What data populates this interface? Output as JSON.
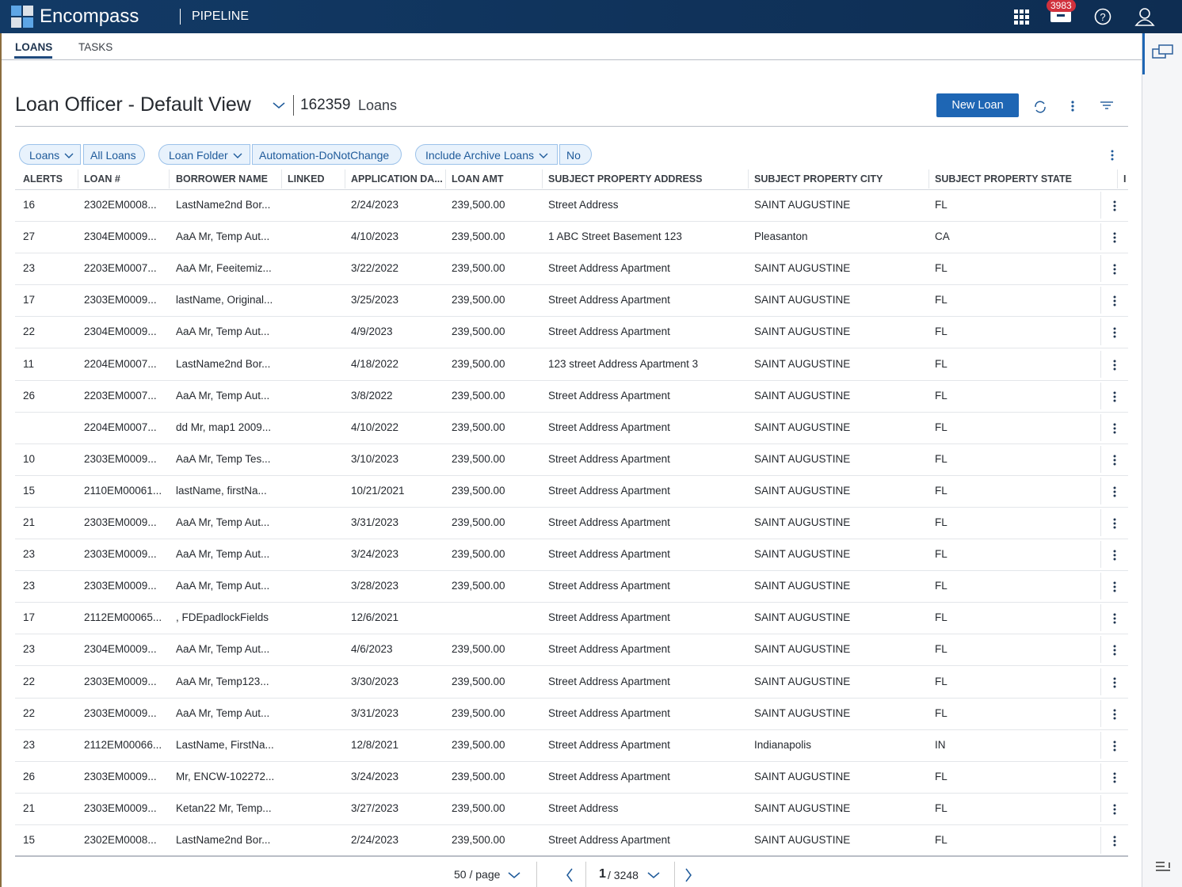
{
  "header": {
    "brand": "Encompass",
    "section": "PIPELINE",
    "badge": "3983"
  },
  "tabs": [
    "LOANS",
    "TASKS"
  ],
  "view": {
    "title": "Loan Officer - Default View",
    "count": "162359",
    "count_label": "Loans",
    "new_loan": "New Loan"
  },
  "filters": [
    {
      "label": "Loans",
      "value": "All Loans"
    },
    {
      "label": "Loan Folder",
      "value": "Automation-DoNotChange"
    },
    {
      "label": "Include Archive Loans",
      "value": "No"
    }
  ],
  "table": {
    "columns": [
      "ALERTS",
      "LOAN #",
      "BORROWER NAME",
      "LINKED",
      "APPLICATION DA...",
      "LOAN AMT",
      "SUBJECT PROPERTY ADDRESS",
      "SUBJECT PROPERTY CITY",
      "SUBJECT PROPERTY STATE",
      "I"
    ],
    "rows": [
      [
        "16",
        "2302EM0008...",
        "LastName2nd Bor...",
        null,
        "2/24/2023",
        "239,500.00",
        "Street Address",
        "SAINT AUGUSTINE",
        "FL"
      ],
      [
        "27",
        "2304EM0009...",
        "AaA Mr, Temp Aut...",
        null,
        "4/10/2023",
        "239,500.00",
        "1 ABC Street Basement 123",
        "Pleasanton",
        "CA"
      ],
      [
        "23",
        "2203EM0007...",
        "AaA Mr, Feeitemiz...",
        null,
        "3/22/2022",
        "239,500.00",
        "Street Address Apartment",
        "SAINT AUGUSTINE",
        "FL"
      ],
      [
        "17",
        "2303EM0009...",
        "lastName, Original...",
        null,
        "3/25/2023",
        "239,500.00",
        "Street Address Apartment",
        "SAINT AUGUSTINE",
        "FL"
      ],
      [
        "22",
        "2304EM0009...",
        "AaA Mr, Temp Aut...",
        null,
        "4/9/2023",
        "239,500.00",
        "Street Address Apartment",
        "SAINT AUGUSTINE",
        "FL"
      ],
      [
        "11",
        "2204EM0007...",
        "LastName2nd Bor...",
        null,
        "4/18/2022",
        "239,500.00",
        "123 street Address Apartment 3",
        "SAINT AUGUSTINE",
        "FL"
      ],
      [
        "26",
        "2203EM0007...",
        "AaA Mr, Temp Aut...",
        null,
        "3/8/2022",
        "239,500.00",
        "Street Address Apartment",
        "SAINT AUGUSTINE",
        "FL"
      ],
      [
        null,
        "2204EM0007...",
        "dd Mr, map1 2009...",
        null,
        "4/10/2022",
        "239,500.00",
        "Street Address Apartment",
        "SAINT AUGUSTINE",
        "FL"
      ],
      [
        "10",
        "2303EM0009...",
        "AaA Mr, Temp Tes...",
        null,
        "3/10/2023",
        "239,500.00",
        "Street Address Apartment",
        "SAINT AUGUSTINE",
        "FL"
      ],
      [
        "15",
        "2110EM00061...",
        "lastName, firstNa...",
        null,
        "10/21/2021",
        "239,500.00",
        "Street Address Apartment",
        "SAINT AUGUSTINE",
        "FL"
      ],
      [
        "21",
        "2303EM0009...",
        "AaA Mr, Temp Aut...",
        null,
        "3/31/2023",
        "239,500.00",
        "Street Address Apartment",
        "SAINT AUGUSTINE",
        "FL"
      ],
      [
        "23",
        "2303EM0009...",
        "AaA Mr, Temp Aut...",
        null,
        "3/24/2023",
        "239,500.00",
        "Street Address Apartment",
        "SAINT AUGUSTINE",
        "FL"
      ],
      [
        "23",
        "2303EM0009...",
        "AaA Mr, Temp Aut...",
        null,
        "3/28/2023",
        "239,500.00",
        "Street Address Apartment",
        "SAINT AUGUSTINE",
        "FL"
      ],
      [
        "17",
        "2112EM00065...",
        ", FDEpadlockFields",
        null,
        "12/6/2021",
        null,
        "Street Address Apartment",
        "SAINT AUGUSTINE",
        "FL"
      ],
      [
        "23",
        "2304EM0009...",
        "AaA Mr, Temp Aut...",
        null,
        "4/6/2023",
        "239,500.00",
        "Street Address Apartment",
        "SAINT AUGUSTINE",
        "FL"
      ],
      [
        "22",
        "2303EM0009...",
        "AaA Mr, Temp123...",
        null,
        "3/30/2023",
        "239,500.00",
        "Street Address Apartment",
        "SAINT AUGUSTINE",
        "FL"
      ],
      [
        "22",
        "2303EM0009...",
        "AaA Mr, Temp Aut...",
        null,
        "3/31/2023",
        "239,500.00",
        "Street Address Apartment",
        "SAINT AUGUSTINE",
        "FL"
      ],
      [
        "23",
        "2112EM00066...",
        "LastName, FirstNa...",
        null,
        "12/8/2021",
        "239,500.00",
        "Street Address Apartment",
        "Indianapolis",
        "IN"
      ],
      [
        "26",
        "2303EM0009...",
        "Mr, ENCW-102272...",
        null,
        "3/24/2023",
        "239,500.00",
        "Street Address Apartment",
        "SAINT AUGUSTINE",
        "FL"
      ],
      [
        "21",
        "2303EM0009...",
        "Ketan22 Mr, Temp...",
        null,
        "3/27/2023",
        "239,500.00",
        "Street Address",
        "SAINT AUGUSTINE",
        "FL"
      ],
      [
        "15",
        "2302EM0008...",
        "LastName2nd Bor...",
        null,
        "2/24/2023",
        "239,500.00",
        "Street Address Apartment",
        "SAINT AUGUSTINE",
        "FL"
      ]
    ]
  },
  "pagination": {
    "per_page": "50 / page",
    "page": "1",
    "total": "/ 3248"
  }
}
